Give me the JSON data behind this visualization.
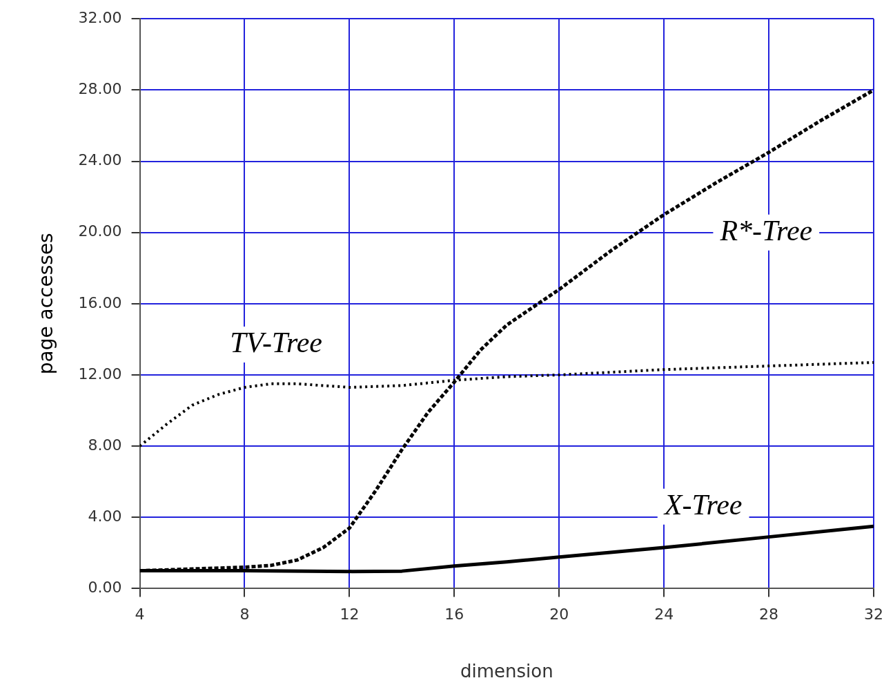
{
  "chart_data": {
    "type": "line",
    "xlabel": "dimension",
    "ylabel": "page accesses",
    "xlim": [
      4,
      32
    ],
    "xticks": [
      4,
      8,
      12,
      16,
      20,
      24,
      28,
      32
    ],
    "ylim": [
      0,
      32
    ],
    "yticks": [
      {
        "value": 0,
        "label": "0.00"
      },
      {
        "value": 4,
        "label": "4.00"
      },
      {
        "value": 8,
        "label": "8.00"
      },
      {
        "value": 12,
        "label": "12.00"
      },
      {
        "value": 16,
        "label": "16.00"
      },
      {
        "value": 20,
        "label": "20.00"
      },
      {
        "value": 24,
        "label": "24.00"
      },
      {
        "value": 28,
        "label": "28.00"
      },
      {
        "value": 32,
        "label": "32.00"
      }
    ],
    "grid": true,
    "legend": false,
    "marker": "none",
    "series": [
      {
        "name": "R*-Tree",
        "color": "#000000",
        "line_style": "dashed",
        "x": [
          4,
          6,
          8,
          9,
          10,
          11,
          12,
          13,
          14,
          15,
          16,
          17,
          18,
          20,
          22,
          24,
          26,
          28,
          30,
          32
        ],
        "values": [
          1.0,
          1.1,
          1.2,
          1.3,
          1.6,
          2.3,
          3.4,
          5.5,
          7.8,
          9.9,
          11.6,
          13.4,
          14.8,
          16.8,
          19.0,
          21.0,
          22.8,
          24.5,
          26.3,
          28.0
        ]
      },
      {
        "name": "TV-Tree",
        "color": "#000000",
        "line_style": "dotted",
        "x": [
          4,
          5,
          6,
          7,
          8,
          9,
          10,
          12,
          14,
          16,
          18,
          20,
          24,
          28,
          32
        ],
        "values": [
          8.0,
          9.2,
          10.3,
          10.9,
          11.3,
          11.5,
          11.5,
          11.3,
          11.4,
          11.7,
          11.9,
          12.0,
          12.3,
          12.5,
          12.7
        ]
      },
      {
        "name": "X-Tree",
        "color": "#000000",
        "line_style": "solid",
        "x": [
          4,
          8,
          12,
          14,
          16,
          18,
          20,
          24,
          28,
          32
        ],
        "values": [
          1.0,
          1.0,
          0.96,
          0.98,
          1.27,
          1.5,
          1.77,
          2.3,
          2.9,
          3.5
        ]
      }
    ]
  }
}
